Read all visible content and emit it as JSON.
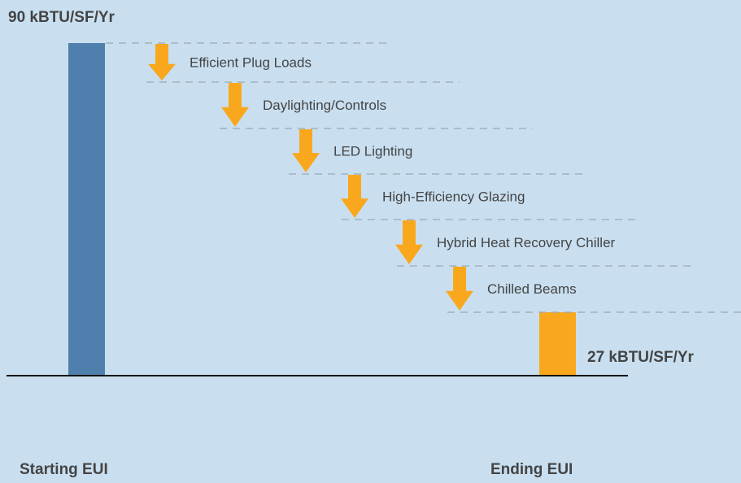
{
  "start_label": "90 kBTU/SF/Yr",
  "end_label": "27 kBTU/SF/Yr",
  "start_caption": "Starting EUI",
  "end_caption": "Ending EUI",
  "steps": [
    "Efficient Plug Loads",
    "Daylighting/Controls",
    "LED Lighting",
    "High-Efficiency Glazing",
    "Hybrid Heat Recovery Chiller",
    "Chilled Beams"
  ]
}
